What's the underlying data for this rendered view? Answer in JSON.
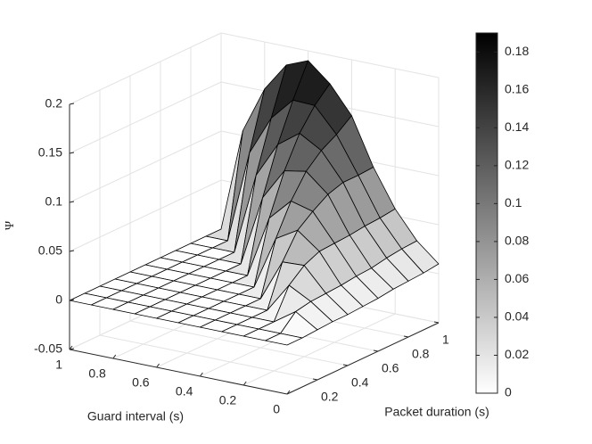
{
  "chart_data": {
    "type": "surface",
    "xlabel": "Guard interval (s)",
    "ylabel": "Packet duration (s)",
    "zlabel": "Ψ",
    "x": [
      0,
      0.1,
      0.2,
      0.3,
      0.4,
      0.5,
      0.6,
      0.7,
      0.8,
      0.9,
      1
    ],
    "y": [
      0,
      0.1,
      0.2,
      0.3,
      0.4,
      0.5,
      0.6,
      0.7,
      0.8,
      0.9,
      1
    ],
    "z": [
      [
        0,
        0,
        0,
        0,
        0,
        0,
        0,
        0,
        0,
        0,
        0
      ],
      [
        0,
        0,
        0,
        0,
        0,
        0,
        0,
        0,
        0,
        0,
        0
      ],
      [
        0.001,
        0.015,
        0,
        0,
        0,
        0,
        0,
        0,
        0,
        0,
        0
      ],
      [
        0.002,
        0.018,
        0.03,
        0,
        0,
        0,
        0,
        0,
        0,
        0,
        0
      ],
      [
        0.002,
        0.019,
        0.043,
        0.042,
        0,
        0,
        0,
        0,
        0,
        0,
        0
      ],
      [
        0.003,
        0.02,
        0.05,
        0.067,
        0.054,
        0,
        0,
        0,
        0,
        0,
        0
      ],
      [
        0.004,
        0.022,
        0.051,
        0.079,
        0.085,
        0.063,
        0,
        0,
        0,
        0,
        0
      ],
      [
        0.006,
        0.023,
        0.052,
        0.089,
        0.108,
        0.104,
        0.072,
        0,
        0,
        0,
        0
      ],
      [
        0.007,
        0.026,
        0.054,
        0.094,
        0.122,
        0.135,
        0.119,
        0.083,
        0,
        0,
        0
      ],
      [
        0.008,
        0.028,
        0.055,
        0.094,
        0.131,
        0.156,
        0.157,
        0.134,
        0.094,
        0,
        0
      ],
      [
        0.01,
        0.029,
        0.057,
        0.095,
        0.143,
        0.171,
        0.19,
        0.181,
        0.152,
        0.105,
        0
      ]
    ],
    "xlim": [
      0,
      1
    ],
    "ylim": [
      0,
      1
    ],
    "zlim": [
      -0.05,
      0.2
    ],
    "xticks": [
      0,
      0.2,
      0.4,
      0.6,
      0.8,
      1
    ],
    "yticks": [
      0.2,
      0.4,
      0.6,
      0.8,
      1
    ],
    "zticks": [
      -0.05,
      0,
      0.05,
      0.1,
      0.15,
      0.2
    ],
    "colormap": "gray",
    "grid": true,
    "colorbar": {
      "clim": [
        0,
        0.19
      ],
      "ticks": [
        0,
        0.02,
        0.04,
        0.06,
        0.08,
        0.1,
        0.12,
        0.14,
        0.16,
        0.18
      ]
    }
  }
}
